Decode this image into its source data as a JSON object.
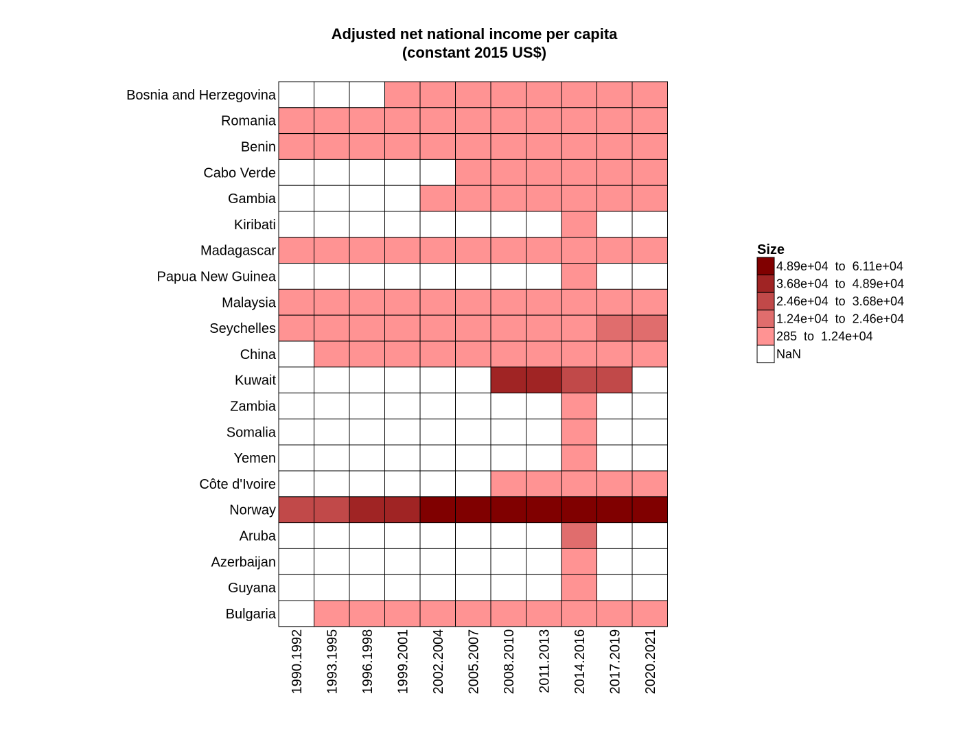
{
  "chart_data": {
    "type": "heatmap",
    "title_line1": "Adjusted net national income per capita",
    "title_line2": "(constant 2015 US$)",
    "xlabel": "",
    "ylabel": "",
    "columns": [
      "1990.1992",
      "1993.1995",
      "1996.1998",
      "1999.2001",
      "2002.2004",
      "2005.2007",
      "2008.2010",
      "2011.2013",
      "2014.2016",
      "2017.2019",
      "2020.2021"
    ],
    "rows": [
      "Bosnia and Herzegovina",
      "Romania",
      "Benin",
      "Cabo Verde",
      "Gambia",
      "Kiribati",
      "Madagascar",
      "Papua New Guinea",
      "Malaysia",
      "Seychelles",
      "China",
      "Kuwait",
      "Zambia",
      "Somalia",
      "Yemen",
      "Côte d'Ivoire",
      "Norway",
      "Aruba",
      "Azerbaijan",
      "Guyana",
      "Bulgaria"
    ],
    "bins": [
      {
        "label": "4.89e+04  to  6.11e+04",
        "color": "#800000"
      },
      {
        "label": "3.68e+04  to  4.89e+04",
        "color": "#a02424"
      },
      {
        "label": "2.46e+04  to  3.68e+04",
        "color": "#c14949"
      },
      {
        "label": "1.24e+04  to  2.46e+04",
        "color": "#e06d6d"
      },
      {
        "label": "285  to  1.24e+04",
        "color": "#ff9393"
      },
      {
        "label": "NaN",
        "color": "#ffffff"
      }
    ],
    "bin_index_note": "cells hold bin index: 0 = highest range ... 4 = lowest range, 5 = NaN",
    "cells": [
      [
        5,
        5,
        5,
        4,
        4,
        4,
        4,
        4,
        4,
        4,
        4
      ],
      [
        4,
        4,
        4,
        4,
        4,
        4,
        4,
        4,
        4,
        4,
        4
      ],
      [
        4,
        4,
        4,
        4,
        4,
        4,
        4,
        4,
        4,
        4,
        4
      ],
      [
        5,
        5,
        5,
        5,
        5,
        4,
        4,
        4,
        4,
        4,
        4
      ],
      [
        5,
        5,
        5,
        5,
        4,
        4,
        4,
        4,
        4,
        4,
        4
      ],
      [
        5,
        5,
        5,
        5,
        5,
        5,
        5,
        5,
        4,
        5,
        5
      ],
      [
        4,
        4,
        4,
        4,
        4,
        4,
        4,
        4,
        4,
        4,
        4
      ],
      [
        5,
        5,
        5,
        5,
        5,
        5,
        5,
        5,
        4,
        5,
        5
      ],
      [
        4,
        4,
        4,
        4,
        4,
        4,
        4,
        4,
        4,
        4,
        4
      ],
      [
        4,
        4,
        4,
        4,
        4,
        4,
        4,
        4,
        4,
        3,
        3
      ],
      [
        5,
        4,
        4,
        4,
        4,
        4,
        4,
        4,
        4,
        4,
        4
      ],
      [
        5,
        5,
        5,
        5,
        5,
        5,
        1,
        1,
        2,
        2,
        5
      ],
      [
        5,
        5,
        5,
        5,
        5,
        5,
        5,
        5,
        4,
        5,
        5
      ],
      [
        5,
        5,
        5,
        5,
        5,
        5,
        5,
        5,
        4,
        5,
        5
      ],
      [
        5,
        5,
        5,
        5,
        5,
        5,
        5,
        5,
        4,
        5,
        5
      ],
      [
        5,
        5,
        5,
        5,
        5,
        5,
        4,
        4,
        4,
        4,
        4
      ],
      [
        2,
        2,
        1,
        1,
        0,
        0,
        0,
        0,
        0,
        0,
        0
      ],
      [
        5,
        5,
        5,
        5,
        5,
        5,
        5,
        5,
        3,
        5,
        5
      ],
      [
        5,
        5,
        5,
        5,
        5,
        5,
        5,
        5,
        4,
        5,
        5
      ],
      [
        5,
        5,
        5,
        5,
        5,
        5,
        5,
        5,
        4,
        5,
        5
      ],
      [
        5,
        4,
        4,
        4,
        4,
        4,
        4,
        4,
        4,
        4,
        4
      ]
    ],
    "legend_title": "Size",
    "legend_position": "right"
  }
}
